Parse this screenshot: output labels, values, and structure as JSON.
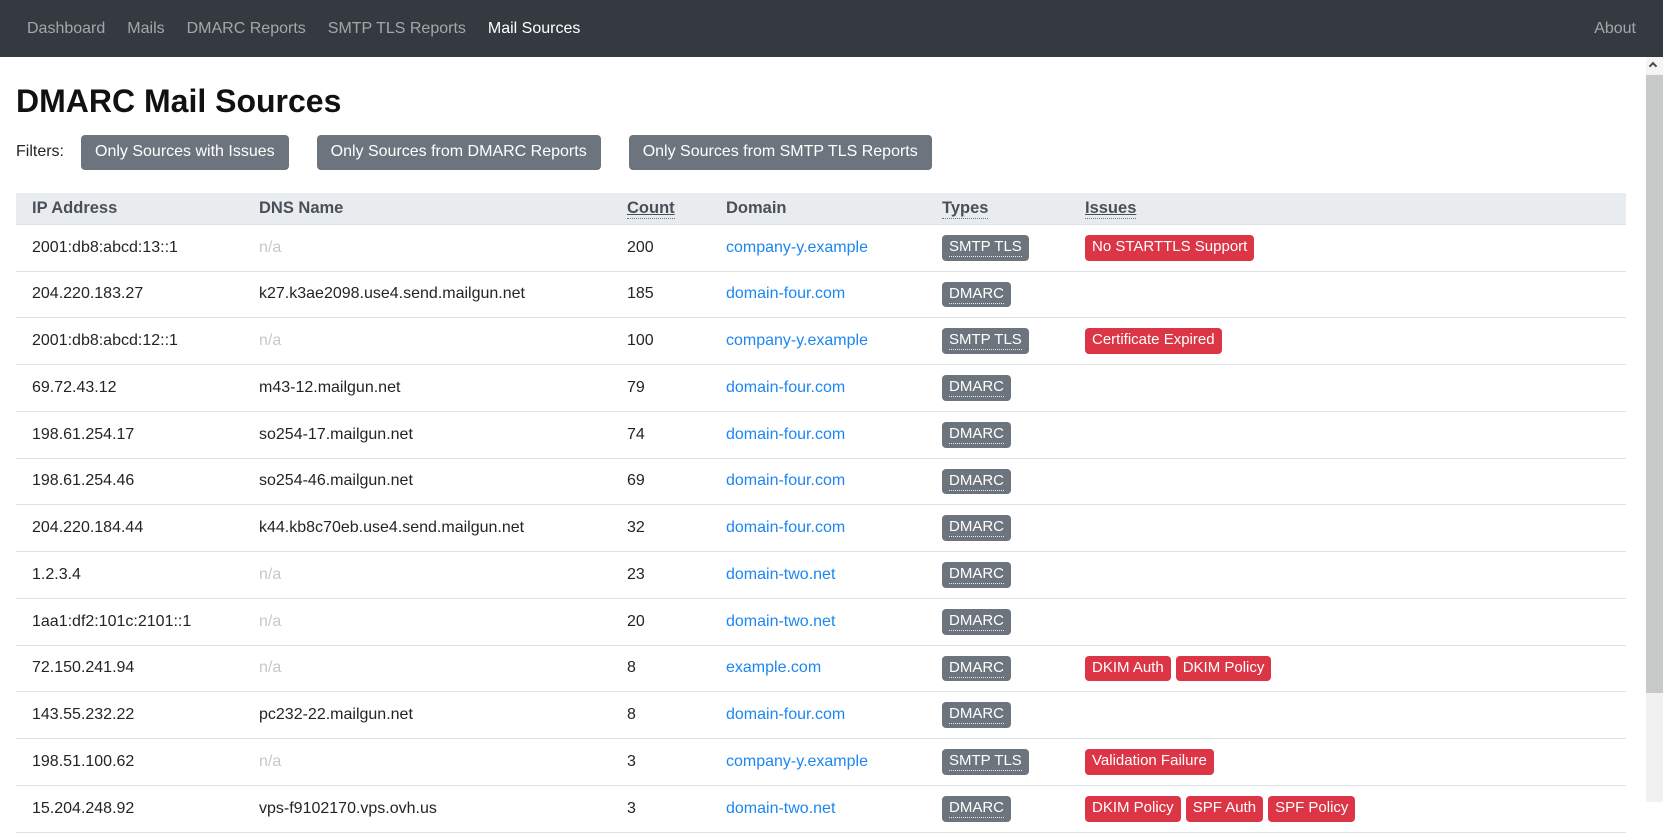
{
  "navbar": {
    "items": [
      {
        "label": "Dashboard",
        "active": false
      },
      {
        "label": "Mails",
        "active": false
      },
      {
        "label": "DMARC Reports",
        "active": false
      },
      {
        "label": "SMTP TLS Reports",
        "active": false
      },
      {
        "label": "Mail Sources",
        "active": true
      }
    ],
    "right_item": "About"
  },
  "page": {
    "title": "DMARC Mail Sources"
  },
  "filters": {
    "label": "Filters:",
    "buttons": [
      "Only Sources with Issues",
      "Only Sources from DMARC Reports",
      "Only Sources from SMTP TLS Reports"
    ]
  },
  "table": {
    "columns": [
      {
        "label": "IP Address",
        "style": "plain"
      },
      {
        "label": "DNS Name",
        "style": "plain"
      },
      {
        "label": "Count",
        "style": "sortable"
      },
      {
        "label": "Domain",
        "style": "plain"
      },
      {
        "label": "Types",
        "style": "tooltip"
      },
      {
        "label": "Issues",
        "style": "sortable"
      }
    ],
    "not_available_text": "n/a",
    "rows": [
      {
        "ip": "2001:db8:abcd:13::1",
        "dns": null,
        "count": "200",
        "domain": "company-y.example",
        "types": [
          "SMTP TLS"
        ],
        "issues": [
          "No STARTTLS Support"
        ]
      },
      {
        "ip": "204.220.183.27",
        "dns": "k27.k3ae2098.use4.send.mailgun.net",
        "count": "185",
        "domain": "domain-four.com",
        "types": [
          "DMARC"
        ],
        "issues": []
      },
      {
        "ip": "2001:db8:abcd:12::1",
        "dns": null,
        "count": "100",
        "domain": "company-y.example",
        "types": [
          "SMTP TLS"
        ],
        "issues": [
          "Certificate Expired"
        ]
      },
      {
        "ip": "69.72.43.12",
        "dns": "m43-12.mailgun.net",
        "count": "79",
        "domain": "domain-four.com",
        "types": [
          "DMARC"
        ],
        "issues": []
      },
      {
        "ip": "198.61.254.17",
        "dns": "so254-17.mailgun.net",
        "count": "74",
        "domain": "domain-four.com",
        "types": [
          "DMARC"
        ],
        "issues": []
      },
      {
        "ip": "198.61.254.46",
        "dns": "so254-46.mailgun.net",
        "count": "69",
        "domain": "domain-four.com",
        "types": [
          "DMARC"
        ],
        "issues": []
      },
      {
        "ip": "204.220.184.44",
        "dns": "k44.kb8c70eb.use4.send.mailgun.net",
        "count": "32",
        "domain": "domain-four.com",
        "types": [
          "DMARC"
        ],
        "issues": []
      },
      {
        "ip": "1.2.3.4",
        "dns": null,
        "count": "23",
        "domain": "domain-two.net",
        "types": [
          "DMARC"
        ],
        "issues": []
      },
      {
        "ip": "1aa1:df2:101c:2101::1",
        "dns": null,
        "count": "20",
        "domain": "domain-two.net",
        "types": [
          "DMARC"
        ],
        "issues": []
      },
      {
        "ip": "72.150.241.94",
        "dns": null,
        "count": "8",
        "domain": "example.com",
        "types": [
          "DMARC"
        ],
        "issues": [
          "DKIM Auth",
          "DKIM Policy"
        ]
      },
      {
        "ip": "143.55.232.22",
        "dns": "pc232-22.mailgun.net",
        "count": "8",
        "domain": "domain-four.com",
        "types": [
          "DMARC"
        ],
        "issues": []
      },
      {
        "ip": "198.51.100.62",
        "dns": null,
        "count": "3",
        "domain": "company-y.example",
        "types": [
          "SMTP TLS"
        ],
        "issues": [
          "Validation Failure"
        ]
      },
      {
        "ip": "15.204.248.92",
        "dns": "vps-f9102170.vps.ovh.us",
        "count": "3",
        "domain": "domain-two.net",
        "types": [
          "DMARC"
        ],
        "issues": [
          "DKIM Policy",
          "SPF Auth",
          "SPF Policy"
        ]
      }
    ]
  },
  "colors": {
    "navbar_bg": "#343a40",
    "link_blue": "#1d86f1",
    "badge_type_bg": "#6c757d",
    "badge_issue_bg": "#dc3545",
    "header_bg": "#e9ecef"
  }
}
